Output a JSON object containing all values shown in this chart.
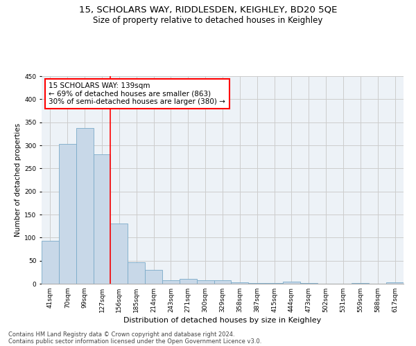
{
  "title": "15, SCHOLARS WAY, RIDDLESDEN, KEIGHLEY, BD20 5QE",
  "subtitle": "Size of property relative to detached houses in Keighley",
  "xlabel": "Distribution of detached houses by size in Keighley",
  "ylabel": "Number of detached properties",
  "categories": [
    "41sqm",
    "70sqm",
    "99sqm",
    "127sqm",
    "156sqm",
    "185sqm",
    "214sqm",
    "243sqm",
    "271sqm",
    "300sqm",
    "329sqm",
    "358sqm",
    "387sqm",
    "415sqm",
    "444sqm",
    "473sqm",
    "502sqm",
    "531sqm",
    "559sqm",
    "588sqm",
    "617sqm"
  ],
  "values": [
    93,
    303,
    337,
    280,
    130,
    46,
    30,
    8,
    10,
    8,
    7,
    3,
    2,
    1,
    4,
    1,
    0,
    0,
    2,
    0,
    3
  ],
  "bar_color": "#c8d8e8",
  "bar_edge_color": "#7aaac8",
  "vline_x": 3.5,
  "vline_color": "red",
  "annotation_text": "15 SCHOLARS WAY: 139sqm\n← 69% of detached houses are smaller (863)\n30% of semi-detached houses are larger (380) →",
  "annotation_box_color": "white",
  "annotation_box_edge_color": "red",
  "ylim": [
    0,
    450
  ],
  "yticks": [
    0,
    50,
    100,
    150,
    200,
    250,
    300,
    350,
    400,
    450
  ],
  "grid_color": "#cccccc",
  "background_color": "#edf2f7",
  "footer_line1": "Contains HM Land Registry data © Crown copyright and database right 2024.",
  "footer_line2": "Contains public sector information licensed under the Open Government Licence v3.0.",
  "title_fontsize": 9.5,
  "subtitle_fontsize": 8.5,
  "xlabel_fontsize": 8,
  "ylabel_fontsize": 7.5,
  "tick_fontsize": 6.5,
  "annotation_fontsize": 7.5,
  "footer_fontsize": 6
}
